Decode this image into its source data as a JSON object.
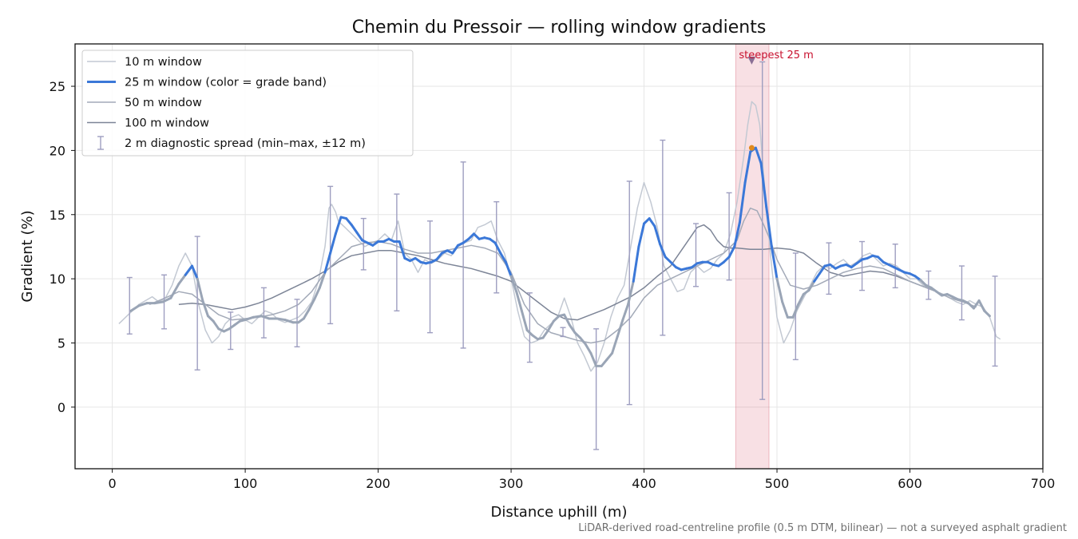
{
  "chart_data": {
    "type": "line",
    "title": "Chemin du Pressoir — rolling window gradients",
    "xlabel": "Distance uphill (m)",
    "ylabel": "Gradient (%)",
    "xlim": [
      -28,
      700
    ],
    "ylim": [
      -4.8,
      28.3
    ],
    "xticks": [
      0,
      100,
      200,
      300,
      400,
      500,
      600,
      700
    ],
    "yticks": [
      0,
      5,
      10,
      15,
      20,
      25
    ],
    "grid": true,
    "legend_position": "top-left",
    "footnote": "LiDAR-derived road-centreline profile (0.5 m DTM, bilinear) — not a surveyed asphalt gradient",
    "steepest_window": {
      "label": "steepest 25 m",
      "x_start": 469,
      "x_end": 494,
      "marker_x": 481,
      "marker_y": 27.0,
      "peak_x": 481,
      "peak_y": 20.2,
      "color": "#c8102e"
    },
    "series": [
      {
        "name": "10 m window",
        "color": "#c3c9d3",
        "x": [
          5,
          10,
          15,
          20,
          25,
          30,
          35,
          40,
          45,
          50,
          55,
          60,
          65,
          70,
          75,
          80,
          85,
          90,
          95,
          100,
          105,
          110,
          115,
          120,
          125,
          130,
          135,
          140,
          145,
          150,
          155,
          160,
          163,
          165,
          168,
          170,
          175,
          180,
          185,
          190,
          195,
          200,
          205,
          210,
          215,
          220,
          225,
          230,
          235,
          240,
          245,
          250,
          255,
          260,
          265,
          270,
          275,
          280,
          285,
          290,
          295,
          300,
          305,
          310,
          315,
          320,
          325,
          330,
          335,
          340,
          345,
          350,
          355,
          360,
          365,
          370,
          375,
          380,
          385,
          390,
          395,
          400,
          405,
          410,
          415,
          420,
          425,
          430,
          435,
          440,
          445,
          450,
          455,
          460,
          465,
          470,
          475,
          478,
          481,
          484,
          487,
          490,
          495,
          500,
          505,
          510,
          515,
          520,
          525,
          530,
          535,
          540,
          545,
          550,
          555,
          560,
          565,
          570,
          575,
          580,
          585,
          590,
          595,
          600,
          605,
          610,
          615,
          620,
          625,
          630,
          635,
          640,
          645,
          650,
          655,
          660,
          665,
          668
        ],
        "values": [
          6.5,
          7.0,
          7.5,
          8.0,
          8.3,
          8.6,
          8.2,
          8.5,
          9.5,
          11.0,
          12.0,
          11.0,
          8.0,
          6.0,
          5.0,
          5.5,
          6.5,
          7.0,
          7.2,
          6.8,
          6.5,
          7.0,
          7.5,
          7.3,
          6.8,
          6.6,
          6.8,
          7.0,
          7.5,
          8.2,
          9.8,
          12.5,
          15.5,
          15.8,
          15.2,
          14.5,
          14.0,
          13.5,
          13.0,
          12.5,
          12.8,
          13.0,
          13.5,
          13.0,
          14.5,
          12.0,
          11.5,
          10.5,
          11.5,
          11.2,
          11.5,
          12.0,
          11.8,
          12.5,
          12.8,
          13.0,
          14.0,
          14.2,
          14.5,
          13.0,
          12.0,
          10.0,
          7.5,
          5.5,
          5.0,
          5.2,
          6.0,
          6.5,
          7.0,
          8.5,
          7.0,
          5.0,
          4.0,
          2.8,
          3.5,
          5.0,
          7.0,
          8.5,
          9.5,
          12.5,
          15.5,
          17.5,
          16.0,
          14.0,
          11.0,
          10.0,
          9.0,
          9.2,
          10.5,
          11.0,
          10.5,
          10.8,
          11.5,
          12.0,
          13.5,
          16.0,
          19.5,
          22.0,
          23.8,
          23.5,
          22.0,
          18.0,
          12.0,
          7.0,
          5.0,
          6.0,
          7.5,
          8.5,
          9.5,
          10.5,
          11.0,
          10.8,
          11.2,
          11.5,
          11.0,
          11.3,
          11.8,
          12.0,
          11.5,
          11.0,
          11.2,
          11.0,
          10.5,
          10.0,
          10.0,
          9.5,
          9.2,
          9.0,
          8.8,
          8.5,
          8.2,
          8.0,
          8.3,
          8.0,
          7.8,
          7.0,
          5.5,
          5.3
        ]
      },
      {
        "name": "25 m window (color = grade band)",
        "color": "#3b78d8",
        "band_color_light": "#9aa5b6",
        "band_threshold": 10,
        "x": [
          14,
          20,
          26,
          32,
          38,
          44,
          50,
          55,
          60,
          64,
          68,
          72,
          76,
          80,
          84,
          88,
          92,
          96,
          100,
          106,
          112,
          118,
          124,
          130,
          136,
          140,
          144,
          148,
          152,
          156,
          160,
          164,
          168,
          172,
          176,
          180,
          184,
          188,
          192,
          196,
          200,
          204,
          208,
          212,
          216,
          220,
          224,
          228,
          232,
          236,
          240,
          244,
          248,
          252,
          256,
          260,
          264,
          268,
          272,
          276,
          280,
          284,
          288,
          292,
          296,
          300,
          304,
          308,
          312,
          316,
          320,
          324,
          328,
          332,
          336,
          340,
          344,
          348,
          352,
          356,
          360,
          364,
          368,
          372,
          376,
          380,
          384,
          388,
          392,
          396,
          400,
          404,
          408,
          412,
          416,
          420,
          424,
          428,
          432,
          436,
          440,
          444,
          448,
          452,
          456,
          460,
          464,
          468,
          472,
          476,
          480,
          484,
          488,
          492,
          496,
          500,
          504,
          508,
          512,
          516,
          520,
          524,
          528,
          532,
          536,
          540,
          544,
          548,
          552,
          556,
          560,
          564,
          568,
          572,
          576,
          580,
          584,
          588,
          592,
          596,
          600,
          604,
          608,
          612,
          616,
          620,
          624,
          628,
          632,
          636,
          640,
          644,
          648,
          652,
          656,
          660
        ],
        "values": [
          7.5,
          7.9,
          8.1,
          8.1,
          8.2,
          8.5,
          9.6,
          10.3,
          11.0,
          10.0,
          8.3,
          7.1,
          6.7,
          6.1,
          5.9,
          6.1,
          6.4,
          6.7,
          6.8,
          7.0,
          7.1,
          6.9,
          6.9,
          6.8,
          6.6,
          6.6,
          6.9,
          7.6,
          8.4,
          9.3,
          10.5,
          12.0,
          13.5,
          14.8,
          14.7,
          14.2,
          13.6,
          13.0,
          12.8,
          12.6,
          12.9,
          12.9,
          13.1,
          12.9,
          12.9,
          11.6,
          11.4,
          11.6,
          11.3,
          11.2,
          11.3,
          11.5,
          12.0,
          12.2,
          12.0,
          12.6,
          12.8,
          13.1,
          13.5,
          13.1,
          13.2,
          13.1,
          12.8,
          12.0,
          11.3,
          10.2,
          9.0,
          7.5,
          6.0,
          5.6,
          5.3,
          5.4,
          6.0,
          6.7,
          7.1,
          7.2,
          6.4,
          5.8,
          5.4,
          4.9,
          4.2,
          3.2,
          3.2,
          3.7,
          4.2,
          5.5,
          6.8,
          8.0,
          9.8,
          12.5,
          14.3,
          14.7,
          14.1,
          12.7,
          11.7,
          11.3,
          10.9,
          10.7,
          10.8,
          10.9,
          11.2,
          11.3,
          11.3,
          11.1,
          11.0,
          11.3,
          11.7,
          12.5,
          14.4,
          17.5,
          19.9,
          20.2,
          19.0,
          15.6,
          12.5,
          10.0,
          8.2,
          7.0,
          7.0,
          8.0,
          8.8,
          9.1,
          9.8,
          10.4,
          11.0,
          11.1,
          10.8,
          11.0,
          11.1,
          10.9,
          11.2,
          11.5,
          11.6,
          11.8,
          11.7,
          11.3,
          11.1,
          10.9,
          10.7,
          10.5,
          10.4,
          10.2,
          9.9,
          9.5,
          9.3,
          9.0,
          8.7,
          8.8,
          8.6,
          8.4,
          8.3,
          8.1,
          7.7,
          8.3,
          7.5,
          7.1
        ]
      },
      {
        "name": "50 m window",
        "color": "#a3aab8",
        "x": [
          28,
          35,
          42,
          50,
          60,
          70,
          80,
          90,
          100,
          110,
          120,
          130,
          140,
          150,
          160,
          170,
          180,
          190,
          200,
          210,
          220,
          230,
          240,
          250,
          260,
          270,
          280,
          290,
          300,
          310,
          320,
          330,
          340,
          350,
          360,
          370,
          380,
          390,
          400,
          410,
          420,
          430,
          440,
          450,
          460,
          470,
          475,
          480,
          485,
          490,
          495,
          500,
          510,
          520,
          530,
          540,
          550,
          560,
          570,
          580,
          590,
          600,
          610,
          620,
          630,
          640,
          650
        ],
        "values": [
          8.0,
          8.3,
          8.6,
          9.0,
          8.8,
          8.0,
          7.2,
          6.8,
          6.9,
          7.0,
          7.2,
          7.5,
          8.0,
          9.0,
          10.5,
          11.5,
          12.5,
          12.8,
          12.9,
          12.7,
          12.3,
          12.0,
          12.0,
          12.2,
          12.4,
          12.6,
          12.4,
          12.0,
          10.5,
          8.0,
          6.5,
          5.8,
          5.5,
          5.2,
          5.0,
          5.2,
          6.0,
          7.0,
          8.5,
          9.5,
          10.0,
          10.5,
          11.0,
          11.5,
          12.0,
          13.0,
          14.5,
          15.5,
          15.3,
          14.2,
          13.0,
          11.5,
          9.5,
          9.2,
          9.5,
          10.0,
          10.5,
          10.8,
          11.0,
          10.8,
          10.3,
          9.8,
          9.4,
          9.0,
          8.5,
          8.2,
          7.8
        ]
      },
      {
        "name": "100 m window",
        "color": "#7d8597",
        "x": [
          50,
          60,
          70,
          80,
          90,
          100,
          110,
          120,
          130,
          140,
          150,
          160,
          170,
          180,
          190,
          200,
          210,
          220,
          230,
          240,
          250,
          260,
          270,
          280,
          290,
          300,
          310,
          320,
          330,
          340,
          350,
          360,
          370,
          380,
          390,
          400,
          410,
          420,
          430,
          440,
          445,
          450,
          455,
          460,
          465,
          470,
          480,
          490,
          500,
          510,
          520,
          530,
          540,
          550,
          560,
          570,
          580,
          590,
          600,
          610,
          620
        ],
        "values": [
          8.0,
          8.1,
          8.0,
          7.8,
          7.6,
          7.8,
          8.1,
          8.5,
          9.0,
          9.5,
          10.0,
          10.6,
          11.3,
          11.8,
          12.0,
          12.2,
          12.2,
          12.0,
          11.8,
          11.5,
          11.2,
          11.0,
          10.8,
          10.5,
          10.2,
          9.8,
          9.0,
          8.2,
          7.4,
          6.9,
          6.8,
          7.2,
          7.6,
          8.1,
          8.6,
          9.3,
          10.2,
          11.0,
          12.5,
          14.0,
          14.2,
          13.8,
          13.0,
          12.5,
          12.4,
          12.4,
          12.3,
          12.3,
          12.4,
          12.3,
          12.0,
          11.2,
          10.5,
          10.2,
          10.4,
          10.6,
          10.5,
          10.2,
          9.8,
          9.4,
          9.0
        ]
      },
      {
        "name": "2 m diagnostic spread (min–max, ±12 m)",
        "type": "errorbar",
        "color": "#9e9ec0",
        "points": [
          {
            "x": 13,
            "min": 5.7,
            "max": 10.1
          },
          {
            "x": 39,
            "min": 6.1,
            "max": 10.3
          },
          {
            "x": 64,
            "min": 2.9,
            "max": 13.3
          },
          {
            "x": 89,
            "min": 4.5,
            "max": 7.4
          },
          {
            "x": 114,
            "min": 5.4,
            "max": 9.3
          },
          {
            "x": 139,
            "min": 4.7,
            "max": 8.4
          },
          {
            "x": 164,
            "min": 6.5,
            "max": 17.2
          },
          {
            "x": 189,
            "min": 10.7,
            "max": 14.7
          },
          {
            "x": 214,
            "min": 7.5,
            "max": 16.6
          },
          {
            "x": 239,
            "min": 5.8,
            "max": 14.5
          },
          {
            "x": 264,
            "min": 4.6,
            "max": 19.1
          },
          {
            "x": 289,
            "min": 8.9,
            "max": 16.0
          },
          {
            "x": 314,
            "min": 3.5,
            "max": 8.9
          },
          {
            "x": 339,
            "min": 5.5,
            "max": 6.2
          },
          {
            "x": 364,
            "min": -3.3,
            "max": 6.1
          },
          {
            "x": 389,
            "min": 0.2,
            "max": 17.6
          },
          {
            "x": 414,
            "min": 5.6,
            "max": 20.8
          },
          {
            "x": 439,
            "min": 9.4,
            "max": 14.3
          },
          {
            "x": 464,
            "min": 9.9,
            "max": 16.7
          },
          {
            "x": 489,
            "min": 0.6,
            "max": 26.9
          },
          {
            "x": 514,
            "min": 3.7,
            "max": 12.0
          },
          {
            "x": 539,
            "min": 8.8,
            "max": 12.8
          },
          {
            "x": 564,
            "min": 9.1,
            "max": 12.9
          },
          {
            "x": 589,
            "min": 9.3,
            "max": 12.7
          },
          {
            "x": 614,
            "min": 8.4,
            "max": 10.6
          },
          {
            "x": 639,
            "min": 6.8,
            "max": 11.0
          },
          {
            "x": 664,
            "min": 3.2,
            "max": 10.2
          }
        ]
      }
    ]
  }
}
